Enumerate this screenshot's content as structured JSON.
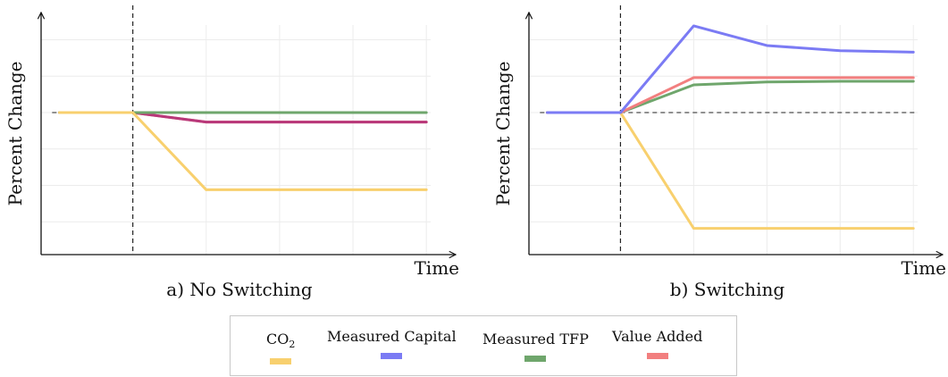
{
  "chart_data": [
    {
      "type": "line",
      "caption": "a) No Switching",
      "xlabel": "Time",
      "ylabel": "Percent Change",
      "x": [
        0,
        1,
        2,
        3,
        4,
        5
      ],
      "xlim": [
        -0.25,
        5.4
      ],
      "ylim": [
        -1.95,
        1.3
      ],
      "grid": true,
      "shock_at": 1,
      "series": [
        {
          "key": "value_added",
          "values": [
            0,
            0,
            -0.13,
            -0.13,
            -0.13,
            -0.13
          ]
        },
        {
          "key": "measured_capital",
          "values": [
            0,
            0,
            -0.13,
            -0.13,
            -0.13,
            -0.13
          ]
        },
        {
          "key": "measured_tfp",
          "values": [
            0,
            0,
            0,
            0,
            0,
            0
          ]
        },
        {
          "key": "co2",
          "values": [
            0,
            0,
            -1.06,
            -1.06,
            -1.06,
            -1.06
          ]
        }
      ]
    },
    {
      "type": "line",
      "caption": "b) Switching",
      "xlabel": "Time",
      "ylabel": "Percent Change",
      "x": [
        0,
        1,
        2,
        3,
        4,
        5
      ],
      "xlim": [
        -0.25,
        5.4
      ],
      "ylim": [
        -1.95,
        1.3
      ],
      "grid": true,
      "shock_at": 1,
      "series": [
        {
          "key": "co2",
          "values": [
            0,
            0,
            -1.59,
            -1.59,
            -1.59,
            -1.59
          ]
        },
        {
          "key": "measured_tfp",
          "values": [
            0,
            0,
            0.38,
            0.42,
            0.43,
            0.43
          ]
        },
        {
          "key": "value_added",
          "values": [
            0,
            0,
            0.48,
            0.48,
            0.48,
            0.48
          ]
        },
        {
          "key": "measured_capital",
          "values": [
            0,
            0,
            1.19,
            0.92,
            0.85,
            0.83
          ]
        }
      ]
    }
  ],
  "colors": {
    "co2": "#f8d06e",
    "measured_capital": "#7b7bf4",
    "measured_tfp": "#6fa66c",
    "value_added": "#f27f7f",
    "overlap": "#b8387a"
  },
  "legend": {
    "placement": "bottom-center",
    "co2_main": "CO",
    "co2_sub": "2",
    "measured_capital": "Measured Capital",
    "measured_tfp": "Measured TFP",
    "value_added": "Value Added"
  }
}
